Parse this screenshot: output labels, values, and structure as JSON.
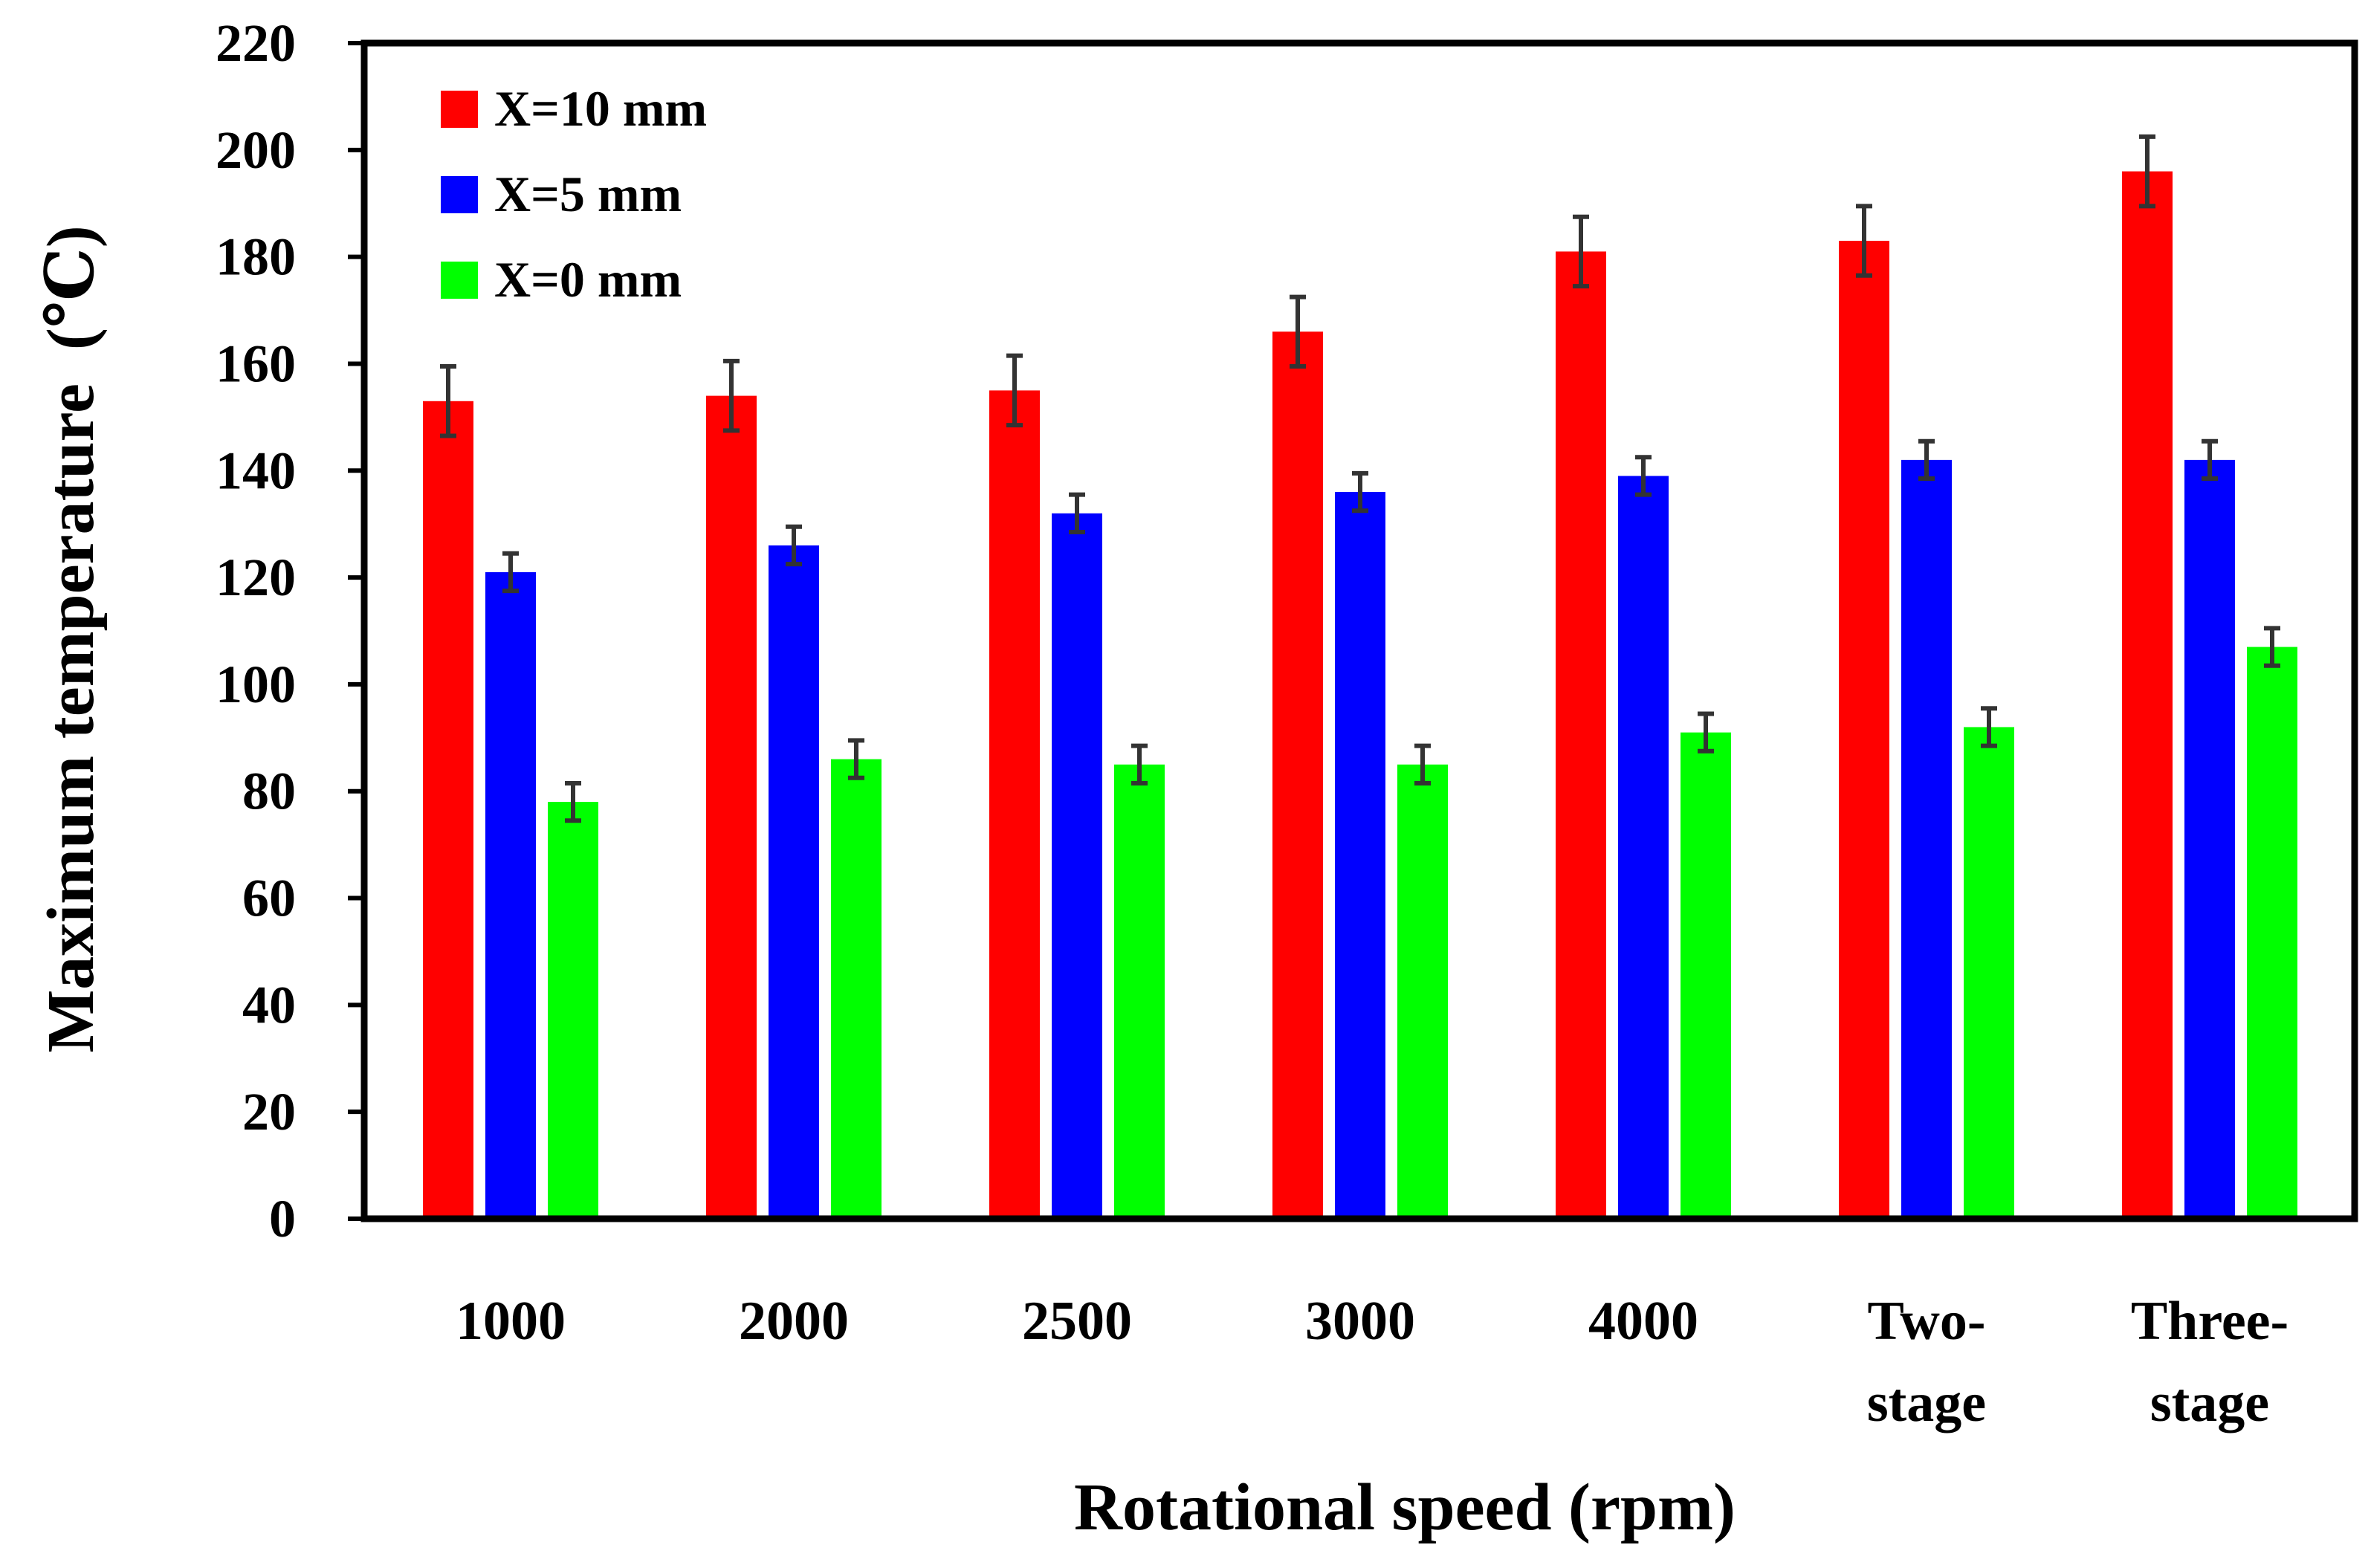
{
  "chart_data": {
    "type": "bar",
    "title": "",
    "xlabel": "Rotational speed (rpm)",
    "ylabel": "Maximum temperature  (℃)",
    "ylim": [
      0,
      220
    ],
    "yticks": [
      0,
      20,
      40,
      60,
      80,
      100,
      120,
      140,
      160,
      180,
      200,
      220
    ],
    "categories": [
      [
        "1000"
      ],
      [
        "2000"
      ],
      [
        "2500"
      ],
      [
        "3000"
      ],
      [
        "4000"
      ],
      [
        "Two-",
        "stage"
      ],
      [
        "Three-",
        "stage"
      ]
    ],
    "legend_position": "top-left",
    "grid": false,
    "series": [
      {
        "name": "X=10 mm",
        "color": "#ff0000",
        "values": [
          153,
          154,
          155,
          166,
          181,
          183,
          196
        ],
        "errors": [
          6.5,
          6.5,
          6.5,
          6.5,
          6.5,
          6.5,
          6.5
        ]
      },
      {
        "name": "X=5 mm",
        "color": "#0000ff",
        "values": [
          121,
          126,
          132,
          136,
          139,
          142,
          142
        ],
        "errors": [
          3.5,
          3.5,
          3.5,
          3.5,
          3.5,
          3.5,
          3.5
        ]
      },
      {
        "name": "X=0 mm",
        "color": "#00ff00",
        "values": [
          78,
          86,
          85,
          85,
          91,
          92,
          107
        ],
        "errors": [
          3.5,
          3.5,
          3.5,
          3.5,
          3.5,
          3.5,
          3.5
        ]
      }
    ]
  }
}
